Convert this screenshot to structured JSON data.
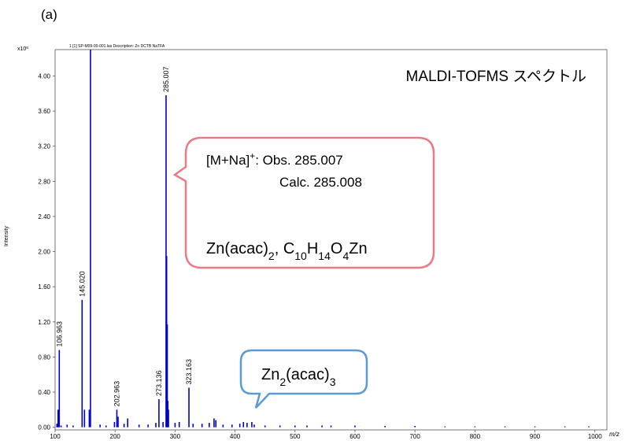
{
  "chart_data": {
    "type": "spectrum",
    "panel_label": "(a)",
    "header": "1 [1] SP-M09-00-001.las   Description: Zn DCTB NaTFA",
    "y_scale_parts": [
      "x10",
      "6"
    ],
    "ylabel": "Intensity",
    "xlabel": "m/z",
    "title": "MALDI-TOFMS スペクトル",
    "color": "#0000cc",
    "xlim": [
      100,
      1020
    ],
    "ylim": [
      -0.03,
      4.3
    ],
    "xticks": [
      100,
      200,
      300,
      400,
      500,
      600,
      700,
      800,
      900,
      1000
    ],
    "yticks": [
      {
        "value": 0,
        "label": "0.00"
      },
      {
        "value": 0.4,
        "label": "0.40"
      },
      {
        "value": 0.8,
        "label": "0.80"
      },
      {
        "value": 1.2,
        "label": "1.20"
      },
      {
        "value": 1.6,
        "label": "1.60"
      },
      {
        "value": 2,
        "label": "2.00"
      },
      {
        "value": 2.4,
        "label": "2.40"
      },
      {
        "value": 2.8,
        "label": "2.80"
      },
      {
        "value": 3.2,
        "label": "3.20"
      },
      {
        "value": 3.6,
        "label": "3.60"
      },
      {
        "value": 4,
        "label": "4.00"
      }
    ],
    "x": [
      103,
      105,
      106.963,
      110,
      120,
      130,
      145.02,
      149,
      157,
      159,
      175,
      185,
      199,
      202.963,
      205,
      215,
      221,
      240,
      255,
      268,
      273.136,
      280,
      285.007,
      286,
      287,
      288,
      289,
      300,
      307,
      323.163,
      330,
      345,
      357,
      365,
      368,
      380,
      395,
      408,
      414,
      420,
      428,
      432,
      450,
      475,
      500,
      520,
      545,
      560,
      600,
      650,
      700,
      750,
      800,
      850,
      900,
      950,
      990
    ],
    "values": [
      0.04,
      0.2,
      0.88,
      0.02,
      0.03,
      0.02,
      1.45,
      0.2,
      0.2,
      4.3,
      0.03,
      0.02,
      0.06,
      0.2,
      0.12,
      0.04,
      0.1,
      0.03,
      0.03,
      0.05,
      0.32,
      0.06,
      3.78,
      1.95,
      1.17,
      0.3,
      0.2,
      0.05,
      0.06,
      0.45,
      0.04,
      0.04,
      0.05,
      0.1,
      0.08,
      0.03,
      0.03,
      0.04,
      0.06,
      0.05,
      0.06,
      0.03,
      0.02,
      0.02,
      0.02,
      0.02,
      0.02,
      0.02,
      0.02,
      0.015,
      0.015,
      0.01,
      0.01,
      0.01,
      0.01,
      0.01,
      0.01
    ],
    "peak_labels": [
      106.963,
      {
        "value": 145.02,
        "label": "145.020"
      },
      202.963,
      273.136,
      285.007,
      323.163
    ],
    "callout_main": {
      "obs_parts": [
        "[M+Na]",
        "+",
        ": Obs. 285.007"
      ],
      "calc": "Calc. 285.008",
      "formula_parts": [
        "Zn(acac)",
        "2",
        ", C",
        "10",
        "H",
        "14",
        "O",
        "4",
        "Zn"
      ]
    },
    "callout_dimer": {
      "formula_parts": [
        "Zn",
        "2",
        "(acac)",
        "3"
      ]
    }
  }
}
